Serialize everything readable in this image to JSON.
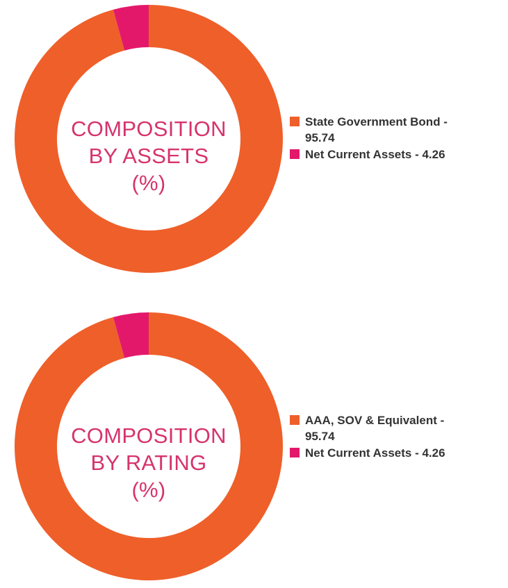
{
  "chart_data": [
    {
      "type": "pie",
      "donut": true,
      "center_title": [
        "COMPOSITION",
        "BY ASSETS",
        "(%)"
      ],
      "slices": [
        {
          "label": "State Government Bond",
          "value": 95.74,
          "legend_text": "State Government Bond - 95.74",
          "color": "#ef5f2a"
        },
        {
          "label": "Net Current Assets",
          "value": 4.26,
          "legend_text": "Net Current Assets - 4.26",
          "color": "#e3186b"
        }
      ],
      "legend_placement": "right"
    },
    {
      "type": "pie",
      "donut": true,
      "center_title": [
        "COMPOSITION",
        "BY RATING",
        "(%)"
      ],
      "slices": [
        {
          "label": "AAA, SOV & Equivalent",
          "value": 95.74,
          "legend_text": "AAA, SOV & Equivalent - 95.74",
          "color": "#ef5f2a"
        },
        {
          "label": "Net Current Assets",
          "value": 4.26,
          "legend_text": "Net Current Assets - 4.26",
          "color": "#e3186b"
        }
      ],
      "legend_placement": "right"
    }
  ]
}
